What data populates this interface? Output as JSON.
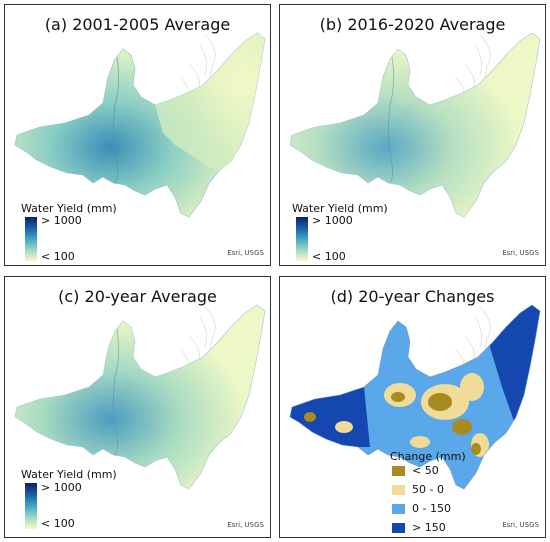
{
  "panels": [
    {
      "title": "(a) 2001-2005 Average",
      "legend": {
        "title": "Water Yield (mm)",
        "high": "> 1000",
        "low": "< 100"
      },
      "attribution": "Esri, USGS"
    },
    {
      "title": "(b) 2016-2020 Average",
      "legend": {
        "title": "Water Yield (mm)",
        "high": "> 1000",
        "low": "< 100"
      },
      "attribution": "Esri, USGS"
    },
    {
      "title": "(c) 20-year Average",
      "legend": {
        "title": "Water Yield (mm)",
        "high": "> 1000",
        "low": "< 100"
      },
      "attribution": "Esri, USGS"
    },
    {
      "title": "(d) 20-year Changes",
      "legend": {
        "title": "Change (mm)",
        "classes": [
          {
            "label": "< 50",
            "color": "#a88a1e"
          },
          {
            "label": "50 - 0",
            "color": "#f0dc98"
          },
          {
            "label": "0 - 150",
            "color": "#5aa8ea"
          },
          {
            "label": "> 150",
            "color": "#1448b0"
          }
        ]
      },
      "attribution": "Esri, USGS"
    }
  ],
  "colors": {
    "yield_low": "#f6fbc6",
    "yield_mid": "#bfe5bf",
    "yield_high": "#0b1f6b",
    "water_high": "#2a78b0"
  }
}
